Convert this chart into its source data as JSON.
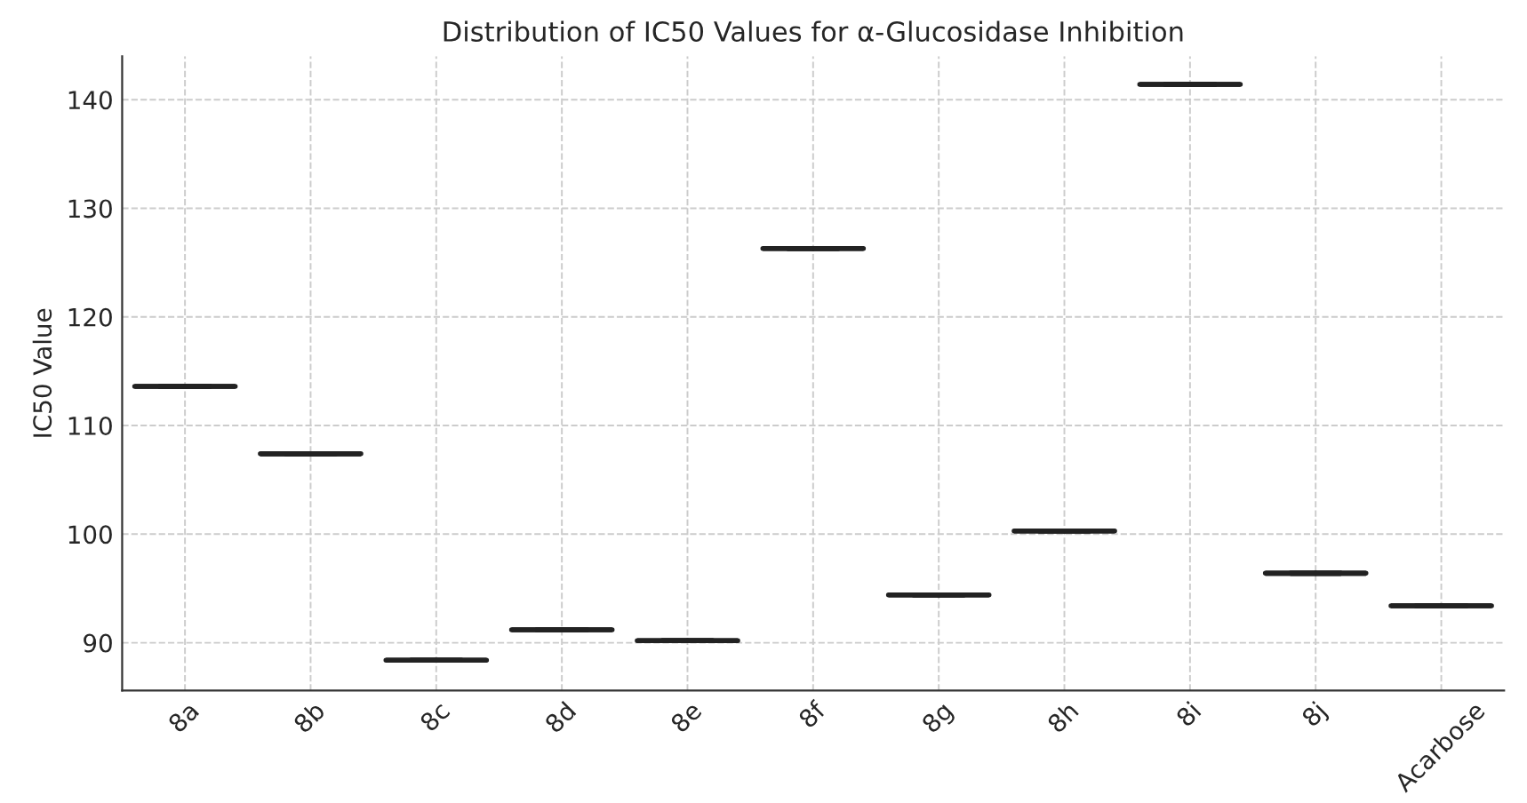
{
  "chart_data": {
    "type": "box",
    "title": "Distribution of IC50 Values for α-Glucosidase Inhibition",
    "ylabel": "IC50 Value",
    "categories": [
      "8a",
      "8b",
      "8c",
      "8d",
      "8e",
      "8f",
      "8g",
      "8h",
      "8i",
      "8j",
      "Acarbose"
    ],
    "boxes": [
      {
        "low": 113.6,
        "q1": 113.6,
        "median": 113.6,
        "q3": 113.6,
        "high": 113.6
      },
      {
        "low": 107.4,
        "q1": 107.4,
        "median": 107.4,
        "q3": 107.4,
        "high": 107.4
      },
      {
        "low": 88.4,
        "q1": 88.4,
        "median": 88.4,
        "q3": 88.4,
        "high": 88.4
      },
      {
        "low": 91.2,
        "q1": 91.2,
        "median": 91.2,
        "q3": 91.2,
        "high": 91.2
      },
      {
        "low": 90.2,
        "q1": 90.2,
        "median": 90.2,
        "q3": 90.2,
        "high": 90.2
      },
      {
        "low": 126.3,
        "q1": 126.3,
        "median": 126.3,
        "q3": 126.3,
        "high": 126.3
      },
      {
        "low": 94.4,
        "q1": 94.4,
        "median": 94.4,
        "q3": 94.4,
        "high": 94.4
      },
      {
        "low": 100.3,
        "q1": 100.3,
        "median": 100.3,
        "q3": 100.3,
        "high": 100.3
      },
      {
        "low": 141.4,
        "q1": 141.4,
        "median": 141.4,
        "q3": 141.4,
        "high": 141.4
      },
      {
        "low": 96.4,
        "q1": 96.4,
        "median": 96.4,
        "q3": 96.4,
        "high": 96.4
      },
      {
        "low": 93.4,
        "q1": 93.4,
        "median": 93.4,
        "q3": 93.4,
        "high": 93.4
      }
    ],
    "color": "#222222",
    "ylim": [
      85.6,
      144.0
    ],
    "yticks": [
      90,
      100,
      110,
      120,
      130,
      140
    ],
    "grid": true
  }
}
